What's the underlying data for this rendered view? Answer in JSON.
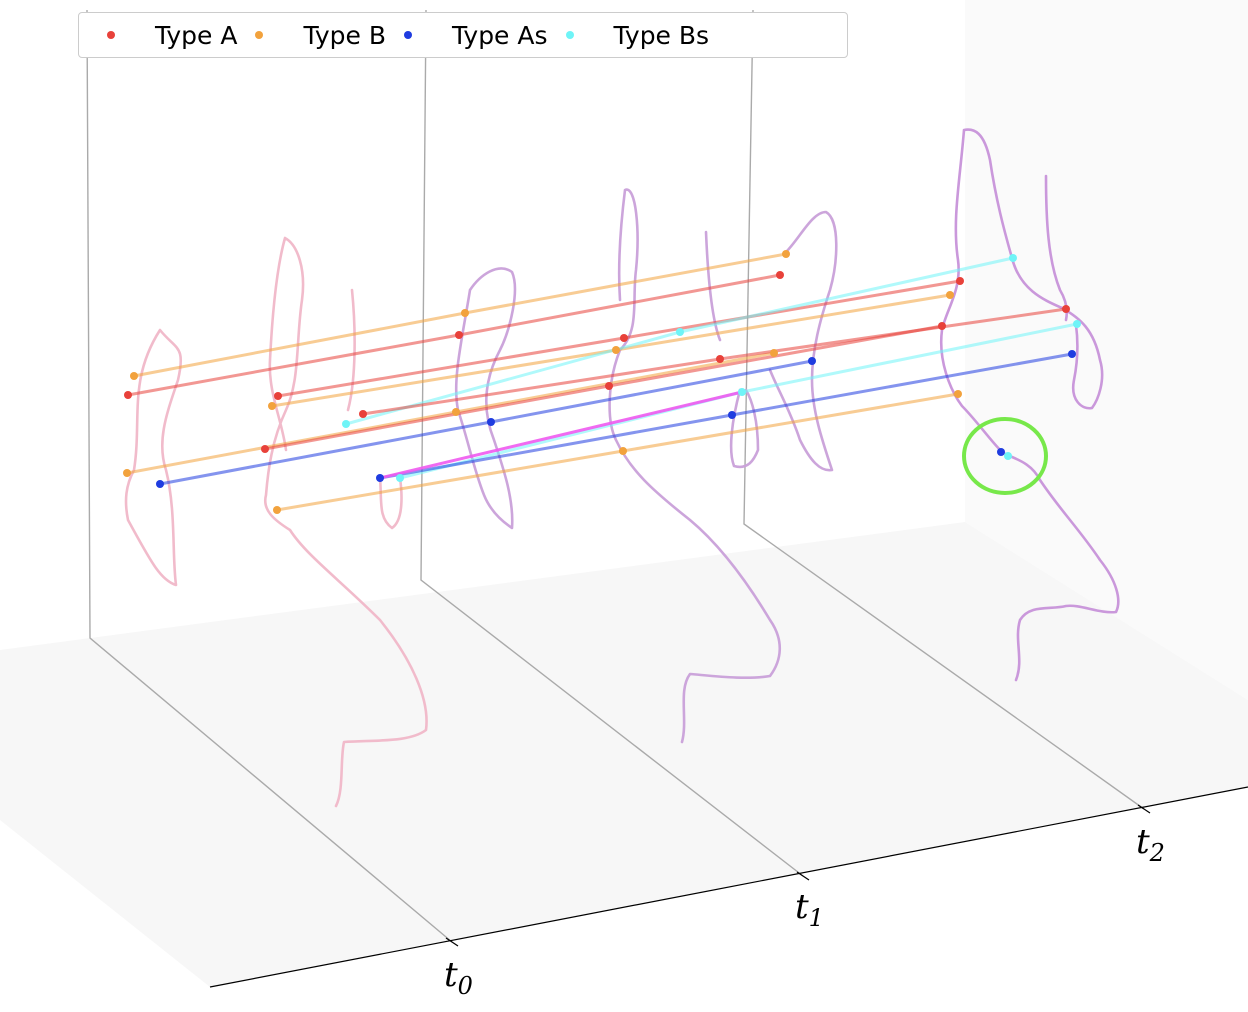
{
  "chart_data": {
    "type": "scatter",
    "title": "",
    "time_axis": {
      "ticks": [
        {
          "base": "t",
          "sub": "0"
        },
        {
          "base": "t",
          "sub": "1"
        },
        {
          "base": "t",
          "sub": "2"
        }
      ]
    },
    "legend": {
      "placement": "top-left",
      "entries": [
        {
          "name": "Type A",
          "color": "#e8413a"
        },
        {
          "name": "Type B",
          "color": "#f2a23d"
        },
        {
          "name": "Type As",
          "color": "#1f3ce0"
        },
        {
          "name": "Type Bs",
          "color": "#6ff4f7"
        }
      ]
    },
    "highlight_color": "#77e84a",
    "curve_colors": [
      "#f0b7c8",
      "#c9a0d9",
      "#c792d9"
    ],
    "transition_color": "#f05af0",
    "line_colors": {
      "Type A": "#e8413a",
      "Type B": "#f2a23d",
      "Type As": "#1f3ce0",
      "Type Bs": "#6ff4f7"
    }
  }
}
